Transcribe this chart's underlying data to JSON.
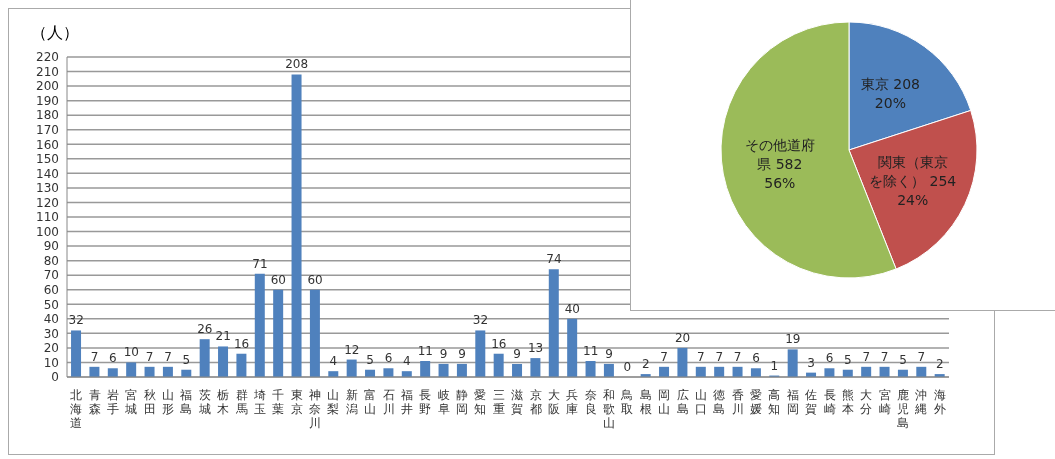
{
  "chart_data": [
    {
      "type": "bar",
      "ylabel": "（人）",
      "categories": [
        "北海道",
        "青森",
        "岩手",
        "宮城",
        "秋田",
        "山形",
        "福島",
        "茨城",
        "栃木",
        "群馬",
        "埼玉",
        "千葉",
        "東京",
        "神奈川",
        "山梨",
        "新潟",
        "富山",
        "石川",
        "福井",
        "長野",
        "岐阜",
        "静岡",
        "愛知",
        "三重",
        "滋賀",
        "京都",
        "大阪",
        "兵庫",
        "奈良",
        "和歌山",
        "鳥取",
        "島根",
        "岡山",
        "広島",
        "山口",
        "徳島",
        "香川",
        "愛媛",
        "高知",
        "福岡",
        "佐賀",
        "長崎",
        "熊本",
        "大分",
        "宮崎",
        "鹿児島",
        "沖縄",
        "海外"
      ],
      "values": [
        32,
        7,
        6,
        10,
        7,
        7,
        5,
        26,
        21,
        16,
        71,
        60,
        208,
        60,
        4,
        12,
        5,
        6,
        4,
        11,
        9,
        9,
        32,
        16,
        9,
        13,
        74,
        40,
        11,
        9,
        0,
        2,
        7,
        20,
        7,
        7,
        7,
        6,
        1,
        19,
        3,
        6,
        5,
        7,
        7,
        5,
        7,
        2
      ],
      "color": "#4f81bd",
      "ylim": [
        0,
        220
      ],
      "yticks": [
        0,
        10,
        20,
        30,
        40,
        50,
        60,
        70,
        80,
        90,
        100,
        110,
        120,
        130,
        140,
        150,
        160,
        170,
        180,
        190,
        200,
        210,
        220
      ],
      "grid": "y",
      "data_labels": true
    },
    {
      "type": "pie",
      "categories": [
        "東京 208",
        "関東（東京を除く） 254",
        "その他道府県 582"
      ],
      "values": [
        20,
        24,
        56
      ],
      "colors": [
        "#4f81bd",
        "#c0504d",
        "#9bbb59"
      ],
      "value_labels": [
        "20%",
        "24%",
        "56%"
      ]
    }
  ]
}
